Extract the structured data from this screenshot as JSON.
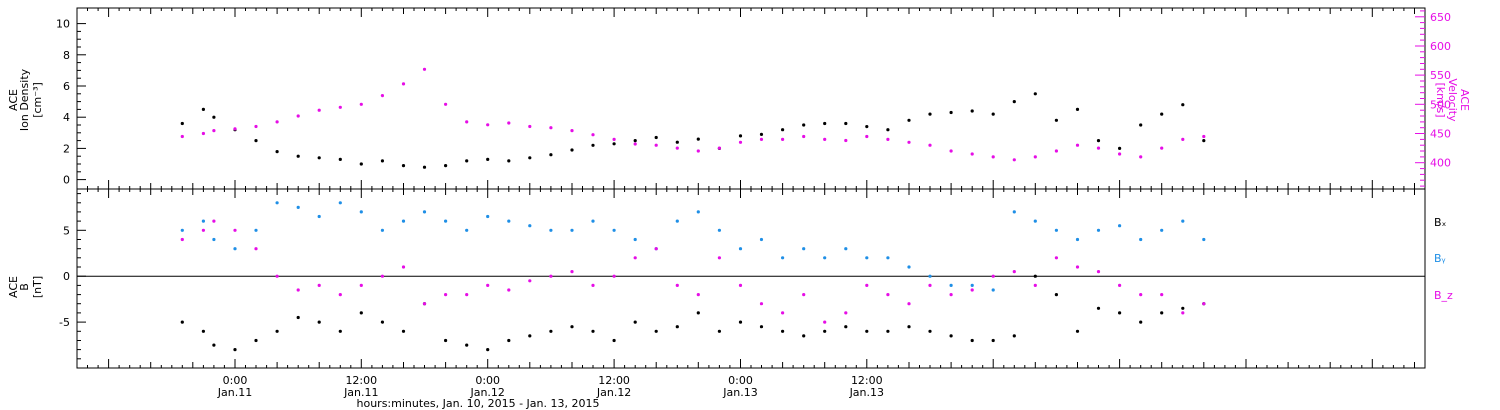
{
  "chart_data": [
    {
      "type": "scatter",
      "panel": "top",
      "ylabel_lines": [
        "ACE",
        "Ion Density",
        "[cm⁻³]"
      ],
      "ylabel_right_lines": [
        "ACE",
        "Velocity",
        "[km/s]"
      ],
      "ylim": [
        -0.6,
        11.0
      ],
      "y2lim": [
        355,
        665
      ],
      "yticks": [
        0,
        2,
        4,
        6,
        8,
        10
      ],
      "y2ticks": [
        400,
        450,
        500,
        550,
        600,
        650
      ],
      "series": [
        {
          "name": "Ion Density",
          "axis": "left",
          "color": "#000000",
          "x": [
            -5,
            -3,
            -2,
            0,
            2,
            4,
            6,
            8,
            10,
            12,
            14,
            16,
            18,
            20,
            22,
            24,
            26,
            28,
            30,
            32,
            34,
            36,
            38,
            40,
            42,
            44,
            46,
            48,
            50,
            52,
            54,
            56,
            58,
            60,
            62,
            64,
            66,
            68,
            70,
            72,
            74,
            76,
            78,
            80,
            82,
            84,
            86,
            88,
            90,
            92
          ],
          "y": [
            3.6,
            4.5,
            4.0,
            3.2,
            2.5,
            1.8,
            1.5,
            1.4,
            1.3,
            1.0,
            1.2,
            0.9,
            0.8,
            0.9,
            1.2,
            1.3,
            1.2,
            1.4,
            1.6,
            1.9,
            2.2,
            2.3,
            2.5,
            2.7,
            2.4,
            2.6,
            2.0,
            2.8,
            2.9,
            3.2,
            3.5,
            3.6,
            3.6,
            3.4,
            3.2,
            3.8,
            4.2,
            4.3,
            4.4,
            4.2,
            5.0,
            5.5,
            3.8,
            4.5,
            2.5,
            2.0,
            3.5,
            4.2,
            4.8,
            2.5
          ]
        },
        {
          "name": "Velocity",
          "axis": "right",
          "color": "#e60ee6",
          "x": [
            -5,
            -3,
            -2,
            0,
            2,
            4,
            6,
            8,
            10,
            12,
            14,
            16,
            18,
            20,
            22,
            24,
            26,
            28,
            30,
            32,
            34,
            36,
            38,
            40,
            42,
            44,
            46,
            48,
            50,
            52,
            54,
            56,
            58,
            60,
            62,
            64,
            66,
            68,
            70,
            72,
            74,
            76,
            78,
            80,
            82,
            84,
            86,
            88,
            90,
            92
          ],
          "y": [
            445,
            450,
            455,
            458,
            462,
            470,
            480,
            490,
            495,
            500,
            515,
            535,
            560,
            500,
            470,
            465,
            468,
            462,
            460,
            455,
            448,
            440,
            432,
            430,
            425,
            420,
            425,
            435,
            440,
            440,
            445,
            440,
            438,
            445,
            440,
            435,
            430,
            420,
            415,
            410,
            405,
            410,
            420,
            430,
            425,
            415,
            410,
            425,
            440,
            445
          ]
        }
      ]
    },
    {
      "type": "scatter",
      "panel": "bottom",
      "ylabel_lines": [
        "ACE",
        "B",
        "[nT]"
      ],
      "ylim": [
        -10.0,
        9.5
      ],
      "yticks": [
        -5,
        0,
        5
      ],
      "series": [
        {
          "name": "Bₓ",
          "color": "#000000",
          "x": [
            -5,
            -3,
            -2,
            0,
            2,
            4,
            6,
            8,
            10,
            12,
            14,
            16,
            18,
            20,
            22,
            24,
            26,
            28,
            30,
            32,
            34,
            36,
            38,
            40,
            42,
            44,
            46,
            48,
            50,
            52,
            54,
            56,
            58,
            60,
            62,
            64,
            66,
            68,
            70,
            72,
            74,
            76,
            78,
            80,
            82,
            84,
            86,
            88,
            90,
            92
          ],
          "y": [
            -5,
            -6,
            -7.5,
            -8,
            -7,
            -6,
            -4.5,
            -5,
            -6,
            -4,
            -5,
            -6,
            -3,
            -7,
            -7.5,
            -8,
            -7,
            -6.5,
            -6,
            -5.5,
            -6,
            -7,
            -5,
            -6,
            -5.5,
            -4,
            -6,
            -5,
            -5.5,
            -6,
            -6.5,
            -6,
            -5.5,
            -6,
            -6,
            -5.5,
            -6,
            -6.5,
            -7,
            -7,
            -6.5,
            0,
            -2,
            -6,
            -3.5,
            -4,
            -5,
            -4,
            -3.5,
            -3
          ]
        },
        {
          "name": "Bᵧ",
          "color": "#1f8fe6",
          "x": [
            -5,
            -3,
            -2,
            0,
            2,
            4,
            6,
            8,
            10,
            12,
            14,
            16,
            18,
            20,
            22,
            24,
            26,
            28,
            30,
            32,
            34,
            36,
            38,
            40,
            42,
            44,
            46,
            48,
            50,
            52,
            54,
            56,
            58,
            60,
            62,
            64,
            66,
            68,
            70,
            72,
            74,
            76,
            78,
            80,
            82,
            84,
            86,
            88,
            90,
            92
          ],
          "y": [
            5,
            6,
            4,
            3,
            5,
            8,
            7.5,
            6.5,
            8,
            7,
            5,
            6,
            7,
            6,
            5,
            6.5,
            6,
            5.5,
            5,
            5,
            6,
            5,
            4,
            3,
            6,
            7,
            5,
            3,
            4,
            2,
            3,
            2,
            3,
            2,
            2,
            1,
            0,
            -1,
            -1,
            -1.5,
            7,
            6,
            5,
            4,
            5,
            5.5,
            4,
            5,
            6,
            4
          ]
        },
        {
          "name": "B_z",
          "color": "#e60ee6",
          "x": [
            -5,
            -3,
            -2,
            0,
            2,
            4,
            6,
            8,
            10,
            12,
            14,
            16,
            18,
            20,
            22,
            24,
            26,
            28,
            30,
            32,
            34,
            36,
            38,
            40,
            42,
            44,
            46,
            48,
            50,
            52,
            54,
            56,
            58,
            60,
            62,
            64,
            66,
            68,
            70,
            72,
            74,
            76,
            78,
            80,
            82,
            84,
            86,
            88,
            90,
            92
          ],
          "y": [
            4,
            5,
            6,
            5,
            3,
            0,
            -1.5,
            -1,
            -2,
            -1,
            0,
            1,
            -3,
            -2,
            -2,
            -1,
            -1.5,
            -0.5,
            0,
            0.5,
            -1,
            0,
            2,
            3,
            -1,
            -2,
            2,
            -1,
            -3,
            -4,
            -2,
            -5,
            -4,
            -1,
            -2,
            -3,
            -1,
            -2,
            -1.5,
            0,
            0.5,
            -1,
            2,
            1,
            0.5,
            -1,
            -2,
            -2,
            -4,
            -3
          ]
        }
      ]
    }
  ],
  "time_axis": {
    "x_unit": "hours since 0:00 Jan.11",
    "xlim": [
      -15,
      113
    ],
    "tick_labels": [
      {
        "x": 0,
        "time": "0:00",
        "date": "Jan.11"
      },
      {
        "x": 12,
        "time": "12:00",
        "date": "Jan.11"
      },
      {
        "x": 24,
        "time": "0:00",
        "date": "Jan.12"
      },
      {
        "x": 36,
        "time": "12:00",
        "date": "Jan.12"
      },
      {
        "x": 48,
        "time": "0:00",
        "date": "Jan.13"
      },
      {
        "x": 60,
        "time": "12:00",
        "date": "Jan.13"
      }
    ],
    "xlabel": "hours:minutes, Jan. 10, 2015 - Jan. 13, 2015"
  }
}
